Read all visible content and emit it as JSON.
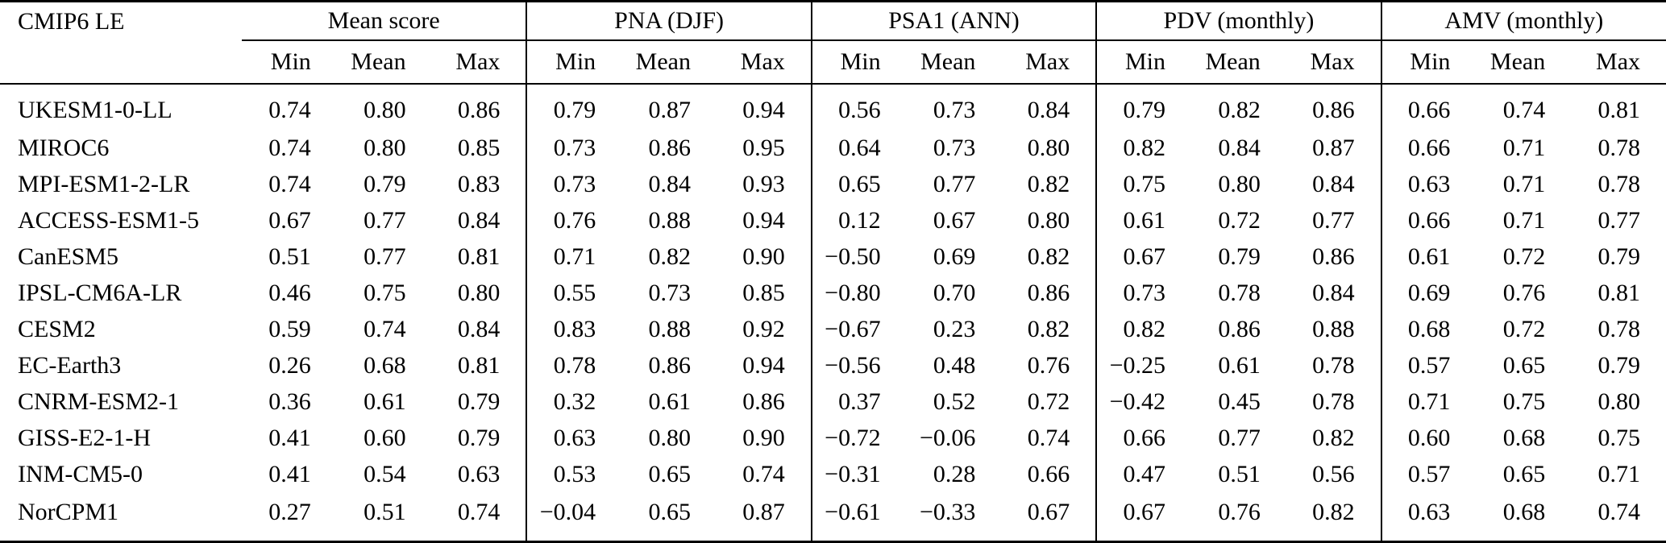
{
  "table": {
    "corner_label": "CMIP6 LE",
    "groups": [
      {
        "label": "Mean score",
        "subcolumns": [
          "Min",
          "Mean",
          "Max"
        ]
      },
      {
        "label": "PNA (DJF)",
        "subcolumns": [
          "Min",
          "Mean",
          "Max"
        ]
      },
      {
        "label": "PSA1 (ANN)",
        "subcolumns": [
          "Min",
          "Mean",
          "Max"
        ]
      },
      {
        "label": "PDV (monthly)",
        "subcolumns": [
          "Min",
          "Mean",
          "Max"
        ]
      },
      {
        "label": "AMV (monthly)",
        "subcolumns": [
          "Min",
          "Mean",
          "Max"
        ]
      }
    ],
    "rows": [
      {
        "model": "UKESM1-0-LL",
        "values": [
          "0.74",
          "0.80",
          "0.86",
          "0.79",
          "0.87",
          "0.94",
          "0.56",
          "0.73",
          "0.84",
          "0.79",
          "0.82",
          "0.86",
          "0.66",
          "0.74",
          "0.81"
        ]
      },
      {
        "model": "MIROC6",
        "values": [
          "0.74",
          "0.80",
          "0.85",
          "0.73",
          "0.86",
          "0.95",
          "0.64",
          "0.73",
          "0.80",
          "0.82",
          "0.84",
          "0.87",
          "0.66",
          "0.71",
          "0.78"
        ]
      },
      {
        "model": "MPI-ESM1-2-LR",
        "values": [
          "0.74",
          "0.79",
          "0.83",
          "0.73",
          "0.84",
          "0.93",
          "0.65",
          "0.77",
          "0.82",
          "0.75",
          "0.80",
          "0.84",
          "0.63",
          "0.71",
          "0.78"
        ]
      },
      {
        "model": "ACCESS-ESM1-5",
        "values": [
          "0.67",
          "0.77",
          "0.84",
          "0.76",
          "0.88",
          "0.94",
          "0.12",
          "0.67",
          "0.80",
          "0.61",
          "0.72",
          "0.77",
          "0.66",
          "0.71",
          "0.77"
        ]
      },
      {
        "model": "CanESM5",
        "values": [
          "0.51",
          "0.77",
          "0.81",
          "0.71",
          "0.82",
          "0.90",
          "−0.50",
          "0.69",
          "0.82",
          "0.67",
          "0.79",
          "0.86",
          "0.61",
          "0.72",
          "0.79"
        ]
      },
      {
        "model": "IPSL-CM6A-LR",
        "values": [
          "0.46",
          "0.75",
          "0.80",
          "0.55",
          "0.73",
          "0.85",
          "−0.80",
          "0.70",
          "0.86",
          "0.73",
          "0.78",
          "0.84",
          "0.69",
          "0.76",
          "0.81"
        ]
      },
      {
        "model": "CESM2",
        "values": [
          "0.59",
          "0.74",
          "0.84",
          "0.83",
          "0.88",
          "0.92",
          "−0.67",
          "0.23",
          "0.82",
          "0.82",
          "0.86",
          "0.88",
          "0.68",
          "0.72",
          "0.78"
        ]
      },
      {
        "model": "EC-Earth3",
        "values": [
          "0.26",
          "0.68",
          "0.81",
          "0.78",
          "0.86",
          "0.94",
          "−0.56",
          "0.48",
          "0.76",
          "−0.25",
          "0.61",
          "0.78",
          "0.57",
          "0.65",
          "0.79"
        ]
      },
      {
        "model": "CNRM-ESM2-1",
        "values": [
          "0.36",
          "0.61",
          "0.79",
          "0.32",
          "0.61",
          "0.86",
          "0.37",
          "0.52",
          "0.72",
          "−0.42",
          "0.45",
          "0.78",
          "0.71",
          "0.75",
          "0.80"
        ]
      },
      {
        "model": "GISS-E2-1-H",
        "values": [
          "0.41",
          "0.60",
          "0.79",
          "0.63",
          "0.80",
          "0.90",
          "−0.72",
          "−0.06",
          "0.74",
          "0.66",
          "0.77",
          "0.82",
          "0.60",
          "0.68",
          "0.75"
        ]
      },
      {
        "model": "INM-CM5-0",
        "values": [
          "0.41",
          "0.54",
          "0.63",
          "0.53",
          "0.65",
          "0.74",
          "−0.31",
          "0.28",
          "0.66",
          "0.47",
          "0.51",
          "0.56",
          "0.57",
          "0.65",
          "0.71"
        ]
      },
      {
        "model": "NorCPM1",
        "values": [
          "0.27",
          "0.51",
          "0.74",
          "−0.04",
          "0.65",
          "0.87",
          "−0.61",
          "−0.33",
          "0.67",
          "0.67",
          "0.76",
          "0.82",
          "0.63",
          "0.68",
          "0.74"
        ]
      }
    ]
  },
  "colors": {
    "text": "#000000",
    "background": "#ffffff",
    "rule": "#000000"
  }
}
